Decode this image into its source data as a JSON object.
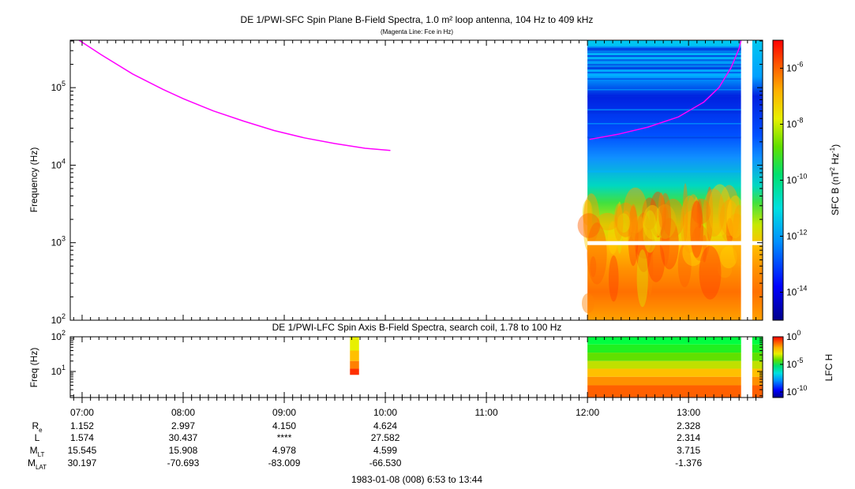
{
  "title": "DE 1/PWI-SFC  Spin Plane B-Field Spectra, 1.0 m² loop antenna, 104 Hz to 409 kHz",
  "subtitle": "(Magenta Line: Fce in Hz)",
  "colors": {
    "fce_line": "#ff00ff",
    "gap": "#ffffff"
  },
  "chart_data": [
    {
      "type": "heatmap",
      "panel": "sfc",
      "title": "DE 1/PWI-SFC  Spin Plane B-Field Spectra, 1.0 m² loop antenna, 104 Hz to 409 kHz",
      "subtitle": "(Magenta Line: Fce in Hz)",
      "ylabel": "Frequency (Hz)",
      "yscale": "log",
      "ylim": [
        100,
        409000
      ],
      "xlim_hours": [
        6.883,
        13.733
      ],
      "yticks": [
        {
          "v": 100,
          "b": "10",
          "e": "2"
        },
        {
          "v": 1000,
          "b": "10",
          "e": "3"
        },
        {
          "v": 10000,
          "b": "10",
          "e": "4"
        },
        {
          "v": 100000,
          "b": "10",
          "e": "5"
        }
      ],
      "colorbar": {
        "label_main": "SFC B (nT",
        "label_sup1": "2",
        "label_mid": " Hz",
        "label_sup2": "-1",
        "label_end": ")",
        "scale": "log",
        "range": [
          1e-15,
          1e-05
        ],
        "ticks": [
          {
            "v": -6,
            "b": "10",
            "e": "-6"
          },
          {
            "v": -8,
            "b": "10",
            "e": "-8"
          },
          {
            "v": -10,
            "b": "10",
            "e": "-10"
          },
          {
            "v": -12,
            "b": "10",
            "e": "-12"
          },
          {
            "v": -14,
            "b": "10",
            "e": "-14"
          }
        ]
      },
      "data_intervals_hours": [
        [
          12.0,
          13.52
        ],
        [
          13.63,
          13.73
        ]
      ],
      "data_gaps_hours": [
        [
          13.52,
          13.63
        ]
      ],
      "fce_line": {
        "name": "Fce",
        "segments": [
          [
            [
              6.97,
              409000
            ],
            [
              7.2,
              260000
            ],
            [
              7.5,
              150000
            ],
            [
              7.8,
              95000
            ],
            [
              8.0,
              72000
            ],
            [
              8.3,
              50000
            ],
            [
              8.6,
              37000
            ],
            [
              8.9,
              28000
            ],
            [
              9.2,
              22500
            ],
            [
              9.5,
              19000
            ],
            [
              9.8,
              16500
            ],
            [
              10.05,
              15500
            ]
          ],
          [
            [
              12.02,
              21500
            ],
            [
              12.3,
              25000
            ],
            [
              12.6,
              31000
            ],
            [
              12.9,
              42000
            ],
            [
              13.15,
              65000
            ],
            [
              13.3,
              100000
            ],
            [
              13.42,
              180000
            ],
            [
              13.5,
              320000
            ],
            [
              13.52,
              409000
            ]
          ]
        ]
      }
    },
    {
      "type": "heatmap",
      "panel": "lfc",
      "title": "DE 1/PWI-LFC  Spin Axis B-Field Spectra, search coil, 1.78 to 100 Hz",
      "ylabel": "Freq (Hz)",
      "yscale": "log",
      "ylim": [
        1.78,
        100
      ],
      "yticks": [
        {
          "v": 10,
          "b": "10",
          "e": "1"
        },
        {
          "v": 100,
          "b": "10",
          "e": "2"
        }
      ],
      "colorbar": {
        "label_main": "LFC H",
        "scale": "log",
        "range": [
          1e-11,
          1
        ],
        "ticks": [
          {
            "v": 0,
            "b": "10",
            "e": "0"
          },
          {
            "v": -5,
            "b": "10",
            "e": "-5"
          },
          {
            "v": -10,
            "b": "10",
            "e": "-10"
          }
        ]
      },
      "data_intervals_hours": [
        [
          9.65,
          9.74
        ],
        [
          12.0,
          13.52
        ],
        [
          13.63,
          13.73
        ]
      ]
    }
  ],
  "xaxis": {
    "ticks": [
      "07:00",
      "08:00",
      "09:00",
      "10:00",
      "11:00",
      "12:00",
      "13:00"
    ],
    "tick_hours": [
      7,
      8,
      9,
      10,
      11,
      12,
      13
    ]
  },
  "ephemeris": {
    "rows": [
      {
        "label": "R",
        "sub": "e",
        "values": [
          "1.152",
          "2.997",
          "4.150",
          "4.624",
          "",
          "",
          "2.328"
        ]
      },
      {
        "label": "L",
        "sub": "",
        "values": [
          "1.574",
          "30.437",
          "****",
          "27.582",
          "",
          "",
          "2.314"
        ]
      },
      {
        "label": "M",
        "sub": "LT",
        "values": [
          "15.545",
          "15.908",
          "4.978",
          "4.599",
          "",
          "",
          "3.715"
        ]
      },
      {
        "label": "M",
        "sub": "LAT",
        "values": [
          "30.197",
          "-70.693",
          "-83.009",
          "-66.530",
          "",
          "",
          "-1.376"
        ]
      }
    ]
  },
  "footer": "1983-01-08 (008) 6:53 to 13:44"
}
